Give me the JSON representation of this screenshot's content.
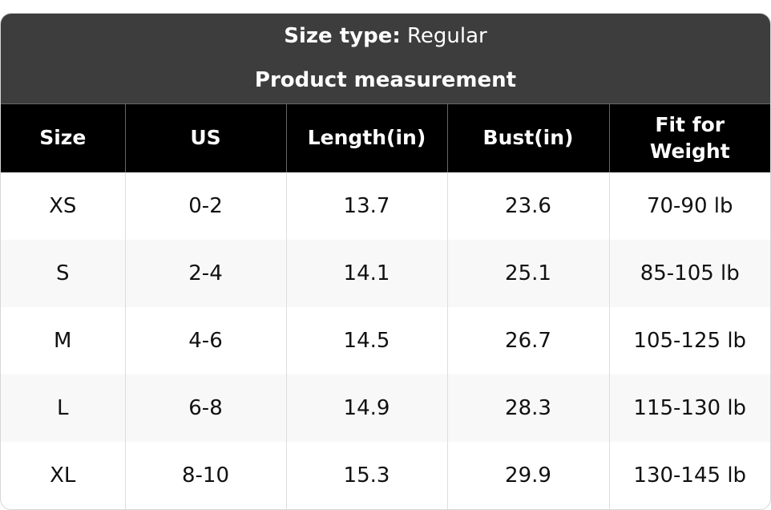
{
  "header": {
    "size_type_label": "Size type:",
    "size_type_value": "Regular",
    "subtitle": "Product measurement"
  },
  "table": {
    "columns": [
      "Size",
      "US",
      "Length(in)",
      "Bust(in)",
      "Fit for Weight"
    ],
    "rows": [
      [
        "XS",
        "0-2",
        "13.7",
        "23.6",
        "70-90 lb"
      ],
      [
        "S",
        "2-4",
        "14.1",
        "25.1",
        "85-105 lb"
      ],
      [
        "M",
        "4-6",
        "14.5",
        "26.7",
        "105-125 lb"
      ],
      [
        "L",
        "6-8",
        "14.9",
        "28.3",
        "115-130 lb"
      ],
      [
        "XL",
        "8-10",
        "15.3",
        "29.9",
        "130-145 lb"
      ]
    ]
  }
}
